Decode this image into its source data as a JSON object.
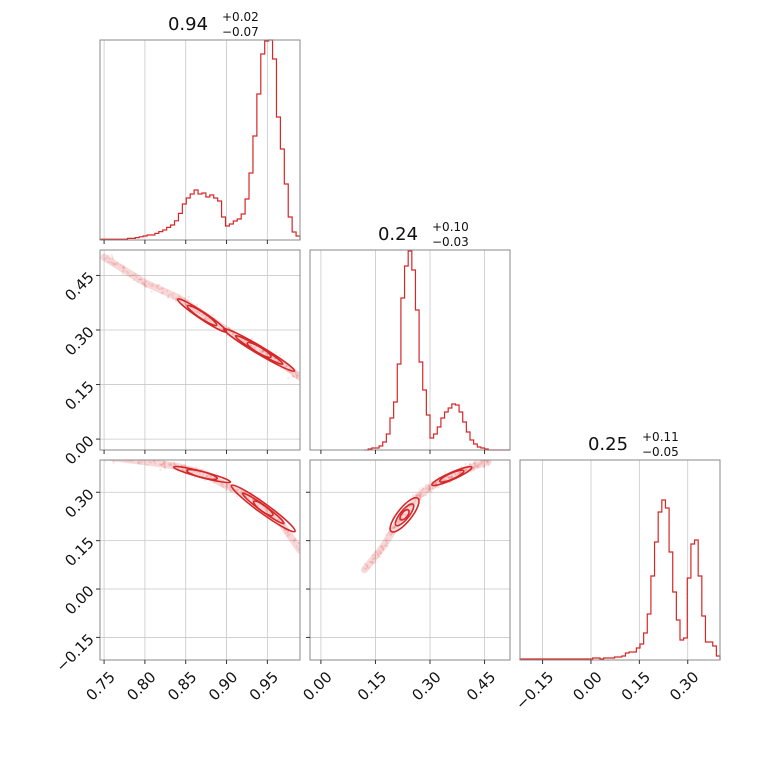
{
  "chart_data": {
    "type": "corner",
    "color": "#d62728",
    "grid": true,
    "panels": [
      {
        "id": "hist-0",
        "type": "histogram",
        "title": {
          "value": "0.94",
          "upper": "+0.02",
          "lower": "−0.07"
        },
        "xlim": [
          0.745,
          0.99
        ],
        "xticks": [
          0.75,
          0.8,
          0.85,
          0.9,
          0.95
        ],
        "ylim": [
          0,
          100
        ],
        "bin_edges": [
          0.745,
          0.99
        ],
        "counts": [
          0.4,
          0.4,
          0.4,
          0.4,
          0.4,
          0.4,
          0.4,
          0.8,
          0.8,
          1.2,
          1.6,
          2,
          2.5,
          2.5,
          3.3,
          4.2,
          5,
          6.3,
          7.5,
          9.6,
          13.3,
          18,
          21,
          23,
          25,
          23,
          23.5,
          21.5,
          22.5,
          21,
          19.5,
          11.5,
          7,
          8,
          9.5,
          10.5,
          13,
          20.5,
          33.5,
          52,
          73,
          93,
          99.5,
          100,
          90.5,
          61.5,
          45.5,
          28,
          11.5,
          4,
          2
        ]
      },
      {
        "id": "hist-1",
        "type": "histogram",
        "title": {
          "value": "0.24",
          "upper": "+0.10",
          "lower": "−0.03"
        },
        "xlim": [
          -0.03,
          0.52
        ],
        "xticks": [
          0.0,
          0.15,
          0.3,
          0.45
        ],
        "ylim": [
          0,
          100
        ],
        "bin_edges": [
          0.12,
          0.52
        ],
        "counts": [
          0,
          0.5,
          1,
          1,
          2,
          4,
          8,
          16,
          24,
          43,
          76,
          92,
          99.5,
          90,
          70,
          44,
          30,
          17.5,
          6,
          8,
          11.5,
          16,
          19,
          21,
          23,
          22.5,
          19,
          14,
          9,
          5,
          3,
          1.5,
          1,
          0.5,
          0,
          0,
          0,
          0,
          0,
          0
        ]
      },
      {
        "id": "hist-2",
        "type": "histogram",
        "title": {
          "value": "0.25",
          "upper": "+0.11",
          "lower": "−0.05"
        },
        "xlim": [
          -0.22,
          0.4
        ],
        "xticks": [
          -0.15,
          0.0,
          0.15,
          0.3
        ],
        "ylim": [
          0,
          100
        ],
        "bin_edges": [
          -0.22,
          0.4
        ],
        "counts": [
          0.5,
          0.5,
          0.5,
          0.5,
          0.5,
          0.5,
          0.5,
          0.5,
          0.5,
          0.5,
          0.5,
          0.5,
          0.5,
          0.5,
          0.5,
          0.5,
          0.5,
          0.5,
          0.5,
          0.5,
          1,
          1,
          0.5,
          1,
          1,
          1,
          1.5,
          1.5,
          2,
          3.5,
          4,
          4,
          6,
          8,
          13.5,
          23,
          42,
          59,
          74,
          80,
          76,
          54,
          34,
          20,
          10,
          11,
          41,
          58,
          60,
          42,
          22,
          9,
          9,
          7,
          2
        ]
      },
      {
        "id": "scatter-1-0",
        "type": "contour",
        "xlim": [
          0.745,
          0.99
        ],
        "ylim": [
          -0.03,
          0.52
        ],
        "xticks": [
          0.75,
          0.8,
          0.85,
          0.9,
          0.95
        ],
        "yticks": [
          0.0,
          0.15,
          0.3,
          0.45
        ],
        "ridge": [
          [
            0.75,
            0.5
          ],
          [
            0.8,
            0.43
          ],
          [
            0.84,
            0.39
          ],
          [
            0.87,
            0.345
          ],
          [
            0.9,
            0.3
          ],
          [
            0.93,
            0.26
          ],
          [
            0.96,
            0.22
          ],
          [
            0.99,
            0.17
          ]
        ],
        "contours": [
          {
            "cx": 0.87,
            "cy": 0.34,
            "rx": 0.03,
            "ry": 0.018
          },
          {
            "cx": 0.87,
            "cy": 0.34,
            "rx": 0.018,
            "ry": 0.01
          },
          {
            "cx": 0.94,
            "cy": 0.245,
            "rx": 0.042,
            "ry": 0.02
          },
          {
            "cx": 0.94,
            "cy": 0.245,
            "rx": 0.028,
            "ry": 0.012
          },
          {
            "cx": 0.94,
            "cy": 0.245,
            "rx": 0.014,
            "ry": 0.006
          }
        ]
      },
      {
        "id": "scatter-2-0",
        "type": "contour",
        "xlim": [
          0.745,
          0.99
        ],
        "ylim": [
          -0.22,
          0.4
        ],
        "xticks": [
          0.75,
          0.8,
          0.85,
          0.9,
          0.95
        ],
        "yticks": [
          -0.15,
          0.0,
          0.15,
          0.3
        ],
        "xticklabels": [
          "0.75",
          "0.80",
          "0.85",
          "0.90",
          "0.95"
        ],
        "yticklabels": [
          "−0.15",
          "0.00",
          "0.15",
          "0.30"
        ],
        "ridge": [
          [
            0.75,
            0.41
          ],
          [
            0.8,
            0.395
          ],
          [
            0.84,
            0.38
          ],
          [
            0.87,
            0.36
          ],
          [
            0.9,
            0.32
          ],
          [
            0.93,
            0.285
          ],
          [
            0.96,
            0.23
          ],
          [
            0.99,
            0.12
          ]
        ],
        "contours": [
          {
            "cx": 0.87,
            "cy": 0.355,
            "rx": 0.03,
            "ry": 0.016
          },
          {
            "cx": 0.87,
            "cy": 0.355,
            "rx": 0.016,
            "ry": 0.008
          },
          {
            "cx": 0.945,
            "cy": 0.25,
            "rx": 0.04,
            "ry": 0.028
          },
          {
            "cx": 0.945,
            "cy": 0.25,
            "rx": 0.026,
            "ry": 0.017
          },
          {
            "cx": 0.945,
            "cy": 0.25,
            "rx": 0.012,
            "ry": 0.008
          }
        ]
      },
      {
        "id": "scatter-2-1",
        "type": "contour",
        "xlim": [
          -0.03,
          0.52
        ],
        "ylim": [
          -0.22,
          0.4
        ],
        "xticks": [
          0.0,
          0.15,
          0.3,
          0.45
        ],
        "yticks": [
          -0.15,
          0.0,
          0.15,
          0.3
        ],
        "xticklabels": [
          "0.00",
          "0.15",
          "0.30",
          "0.45"
        ],
        "ridge": [
          [
            0.12,
            0.06
          ],
          [
            0.17,
            0.13
          ],
          [
            0.22,
            0.22
          ],
          [
            0.27,
            0.29
          ],
          [
            0.32,
            0.33
          ],
          [
            0.37,
            0.355
          ],
          [
            0.42,
            0.38
          ],
          [
            0.46,
            0.395
          ]
        ],
        "contours": [
          {
            "cx": 0.23,
            "cy": 0.23,
            "rx": 0.035,
            "ry": 0.055
          },
          {
            "cx": 0.23,
            "cy": 0.23,
            "rx": 0.022,
            "ry": 0.035
          },
          {
            "cx": 0.23,
            "cy": 0.23,
            "rx": 0.01,
            "ry": 0.016
          },
          {
            "cx": 0.36,
            "cy": 0.35,
            "rx": 0.05,
            "ry": 0.02
          },
          {
            "cx": 0.36,
            "cy": 0.35,
            "rx": 0.03,
            "ry": 0.012
          }
        ]
      }
    ],
    "bottom_hist_xticklabels": [
      "−0.15",
      "0.00",
      "0.15",
      "0.30"
    ]
  }
}
